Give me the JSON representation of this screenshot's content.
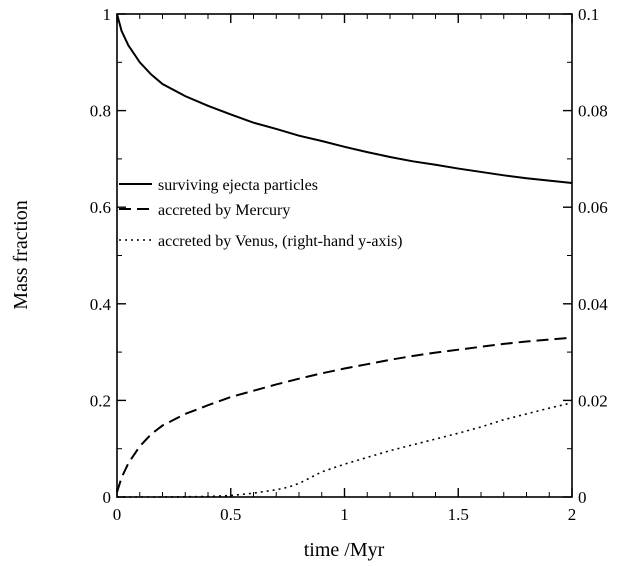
{
  "chart_data": {
    "type": "line",
    "xlabel": "time /Myr",
    "ylabel": "Mass fraction",
    "xlim": [
      0,
      2
    ],
    "ylim": [
      0,
      1
    ],
    "y2lim": [
      0,
      0.1
    ],
    "x_ticks": [
      "0",
      "0.5",
      "1",
      "1.5",
      "2"
    ],
    "y_ticks": [
      "0",
      "0.2",
      "0.4",
      "0.6",
      "0.8",
      "1"
    ],
    "y2_ticks": [
      "0",
      "0.02",
      "0.04",
      "0.06",
      "0.08",
      "0.1"
    ],
    "grid": false,
    "legend_position": "left",
    "series": [
      {
        "name": "surviving ejecta particles",
        "style": "solid",
        "axis": "left",
        "x": [
          0,
          0.02,
          0.05,
          0.1,
          0.15,
          0.2,
          0.3,
          0.4,
          0.5,
          0.6,
          0.7,
          0.8,
          0.9,
          1.0,
          1.1,
          1.2,
          1.3,
          1.4,
          1.5,
          1.6,
          1.7,
          1.8,
          1.9,
          2.0
        ],
        "y": [
          1.0,
          0.965,
          0.935,
          0.9,
          0.875,
          0.855,
          0.83,
          0.81,
          0.792,
          0.775,
          0.762,
          0.748,
          0.737,
          0.725,
          0.714,
          0.704,
          0.695,
          0.688,
          0.68,
          0.673,
          0.666,
          0.66,
          0.655,
          0.65
        ]
      },
      {
        "name": "accreted by Mercury",
        "style": "dashed",
        "axis": "left",
        "x": [
          0,
          0.02,
          0.05,
          0.1,
          0.15,
          0.2,
          0.3,
          0.4,
          0.5,
          0.6,
          0.7,
          0.8,
          0.9,
          1.0,
          1.1,
          1.2,
          1.3,
          1.4,
          1.5,
          1.6,
          1.7,
          1.8,
          1.9,
          2.0
        ],
        "y": [
          0.01,
          0.04,
          0.07,
          0.105,
          0.13,
          0.148,
          0.172,
          0.19,
          0.207,
          0.22,
          0.233,
          0.245,
          0.256,
          0.266,
          0.275,
          0.284,
          0.292,
          0.299,
          0.305,
          0.311,
          0.317,
          0.322,
          0.326,
          0.33
        ]
      },
      {
        "name": "accreted by Venus, (right-hand y-axis)",
        "style": "dotted",
        "axis": "right",
        "x": [
          0,
          0.2,
          0.4,
          0.5,
          0.6,
          0.7,
          0.75,
          0.8,
          0.85,
          0.9,
          1.0,
          1.1,
          1.2,
          1.3,
          1.4,
          1.5,
          1.6,
          1.7,
          1.8,
          1.9,
          2.0
        ],
        "y": [
          0,
          0,
          0.0001,
          0.0003,
          0.0008,
          0.0015,
          0.002,
          0.0028,
          0.004,
          0.0052,
          0.0068,
          0.0082,
          0.0096,
          0.0108,
          0.012,
          0.0132,
          0.0145,
          0.016,
          0.0172,
          0.0184,
          0.0195
        ]
      }
    ]
  }
}
